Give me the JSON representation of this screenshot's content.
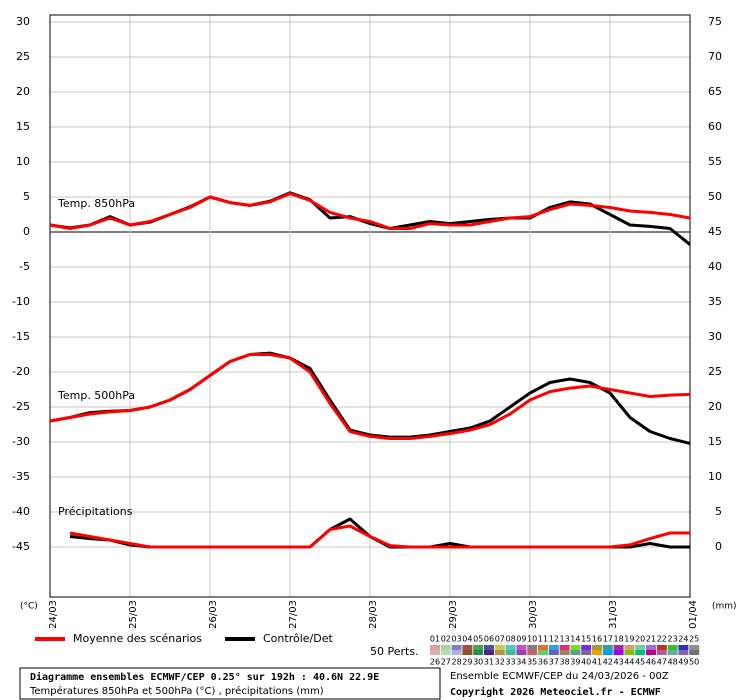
{
  "chart_data": {
    "type": "ensemble-line",
    "x": [
      0,
      6,
      12,
      18,
      24,
      30,
      36,
      42,
      48,
      54,
      60,
      66,
      72,
      78,
      84,
      90,
      96,
      102,
      108,
      114,
      120,
      126,
      132,
      138,
      144,
      150,
      156,
      162,
      168,
      174,
      180,
      186,
      192
    ],
    "xlim": [
      0,
      192
    ],
    "xticks": [
      {
        "value": 0,
        "label": "24/03"
      },
      {
        "value": 24,
        "label": "25/03"
      },
      {
        "value": 48,
        "label": "26/03"
      },
      {
        "value": 72,
        "label": "27/03"
      },
      {
        "value": 96,
        "label": "28/03"
      },
      {
        "value": 120,
        "label": "29/03"
      },
      {
        "value": 144,
        "label": "30/03"
      },
      {
        "value": 168,
        "label": "31/03"
      },
      {
        "value": 192,
        "label": "01/04"
      }
    ],
    "ylim": [
      -52.14,
      31
    ],
    "yticks": [
      30,
      25,
      20,
      15,
      10,
      5,
      0,
      -5,
      -10,
      -15,
      -20,
      -25,
      -30,
      -35,
      -40,
      -45
    ],
    "y2lim": [
      -7.14,
      76
    ],
    "y2ticks": [
      75,
      70,
      65,
      60,
      55,
      50,
      45,
      40,
      35,
      30,
      25,
      20,
      15,
      10,
      5,
      0
    ],
    "y_label": "(°C)",
    "y2_label": "(mm)",
    "grid": true,
    "annotations": [
      "Temp. 850hPa",
      "Temp. 500hPa",
      "Précipitations"
    ],
    "series": [
      {
        "name": "Moyenne des scénarios",
        "color": "#ff0000",
        "t850": [
          1,
          0.5,
          1,
          2,
          1,
          1.5,
          2.5,
          3.5,
          5,
          4.2,
          3.8,
          4.3,
          5.5,
          4.5,
          2.8,
          2,
          1.5,
          0.5,
          0.5,
          1.2,
          1,
          1,
          1.5,
          2,
          2.2,
          3.2,
          4,
          3.8,
          3.5,
          3,
          2.8,
          2.5,
          2
        ],
        "t500": [
          -27,
          -26.5,
          -26,
          -25.7,
          -25.5,
          -25,
          -24,
          -22.5,
          -20.5,
          -18.5,
          -17.5,
          -17.5,
          -18,
          -20,
          -24.5,
          -28.5,
          -29.2,
          -29.5,
          -29.5,
          -29.2,
          -28.8,
          -28.3,
          -27.5,
          -26,
          -24,
          -22.8,
          -22.3,
          -22,
          -22.5,
          -23,
          -23.5,
          -23.3,
          -23.2
        ],
        "precip": [
          null,
          2,
          1.5,
          1,
          0.5,
          0,
          0,
          0,
          0,
          0,
          0,
          0,
          0,
          0,
          2.5,
          3,
          1.5,
          0.2,
          0,
          0,
          0,
          0,
          0,
          0,
          0,
          0,
          0,
          0,
          0,
          0.3,
          1.2,
          2,
          2
        ]
      },
      {
        "name": "Contrôle/Det",
        "color": "#000000",
        "t850": [
          1,
          0.6,
          1,
          2.2,
          1,
          1.4,
          2.5,
          3.6,
          5,
          4.2,
          3.8,
          4.4,
          5.6,
          4.6,
          2,
          2.2,
          1.2,
          0.5,
          1,
          1.5,
          1.2,
          1.5,
          1.8,
          2,
          2,
          3.5,
          4.3,
          4,
          2.5,
          1,
          0.8,
          0.5,
          -1.8
        ],
        "t500": [
          -27,
          -26.5,
          -25.8,
          -25.6,
          -25.5,
          -25,
          -24,
          -22.5,
          -20.5,
          -18.5,
          -17.5,
          -17.3,
          -18,
          -19.5,
          -24,
          -28.3,
          -29,
          -29.3,
          -29.3,
          -29,
          -28.5,
          -28,
          -27,
          -25,
          -23,
          -21.5,
          -21,
          -21.5,
          -23,
          -26.5,
          -28.5,
          -29.5,
          -30.2
        ],
        "precip": [
          null,
          1.5,
          1.2,
          1,
          0.3,
          0,
          0,
          0,
          0,
          0,
          0,
          0,
          0,
          0,
          2.5,
          4,
          1.5,
          0,
          0,
          0,
          0.5,
          0,
          0,
          0,
          0,
          0,
          0,
          0,
          0,
          0,
          0.5,
          0,
          0
        ]
      }
    ],
    "members": {
      "label": "50 Perts.",
      "numbers": [
        "01",
        "02",
        "03",
        "04",
        "05",
        "06",
        "07",
        "08",
        "09",
        "10",
        "11",
        "12",
        "13",
        "14",
        "15",
        "16",
        "17",
        "18",
        "19",
        "20",
        "21",
        "22",
        "23",
        "24",
        "25",
        "26",
        "27",
        "28",
        "29",
        "30",
        "31",
        "32",
        "33",
        "34",
        "35",
        "36",
        "37",
        "38",
        "39",
        "40",
        "41",
        "42",
        "43",
        "44",
        "45",
        "46",
        "47",
        "48",
        "49",
        "50"
      ],
      "colors": [
        "#d8a0a0",
        "#b0d0a0",
        "#8080c8",
        "#a05050",
        "#50a050",
        "#5050a0",
        "#c8c850",
        "#50c8c8",
        "#c850c8",
        "#808080",
        "#e07030",
        "#30a0e0",
        "#e03070",
        "#70e030",
        "#7030e0",
        "#a0a030",
        "#30a0a0",
        "#a030a0",
        "#d0a070",
        "#70d0a0",
        "#a070d0",
        "#c03030",
        "#30c030",
        "#3030c0",
        "#909090",
        "#e0b0b0",
        "#b0e0b0",
        "#b0b0e0",
        "#905020",
        "#209050",
        "#502090",
        "#c09040",
        "#40c090",
        "#9040c0",
        "#d06060",
        "#60d060",
        "#6060d0",
        "#a08060",
        "#60a080",
        "#8060a0",
        "#f0a000",
        "#00a0f0",
        "#a000f0",
        "#80c000",
        "#00c080",
        "#c00080",
        "#b06090",
        "#60b090",
        "#9060b0",
        "#707070"
      ]
    },
    "footer": {
      "title": "Diagramme ensembles ECMWF/CEP 0.25° sur 192h : 40.6N 22.9E",
      "subtitle": "Températures 850hPa et 500hPa (°C) , précipitations (mm)",
      "run": "Ensemble ECMWF/CEP du 24/03/2026 - 00Z",
      "copyright": "Copyright 2026 Meteociel.fr - ECMWF"
    }
  }
}
